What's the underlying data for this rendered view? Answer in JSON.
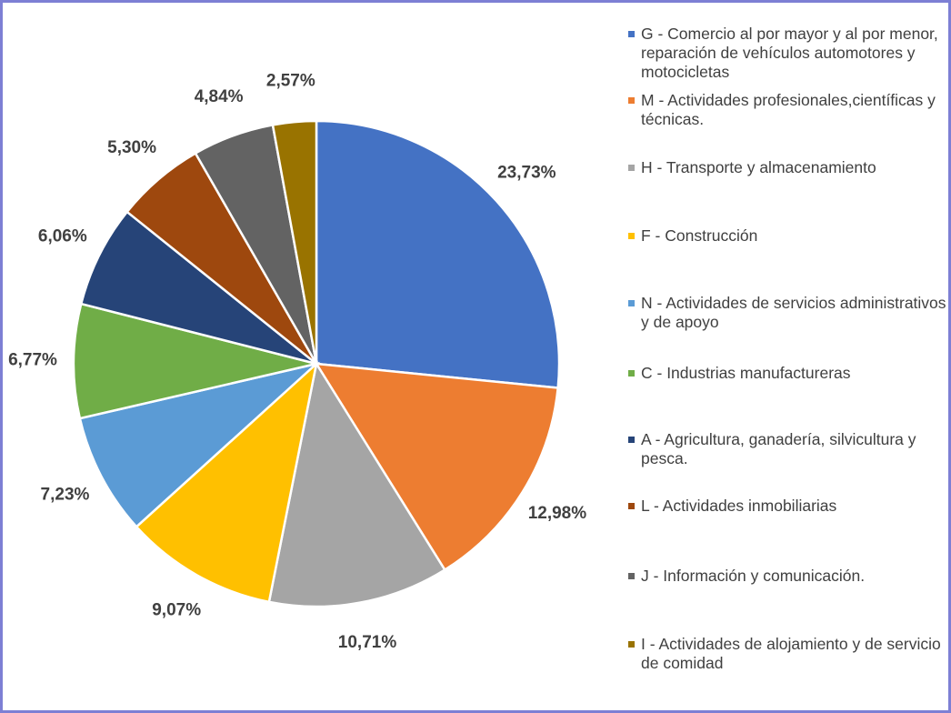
{
  "chart_data": {
    "type": "pie",
    "categories": [
      "G - Comercio al por mayor y al por menor, reparación de vehículos automotores y motocicletas",
      "M - Actividades profesionales,científicas y técnicas.",
      "H - Transporte y almacenamiento",
      "F - Construcción",
      "N - Actividades de servicios administrativos y de apoyo",
      "C - Industrias manufactureras",
      "A - Agricultura, ganadería, silvicultura y pesca.",
      "L - Actividades inmobiliarias",
      "J - Información y comunicación.",
      "I - Actividades de alojamiento y de servicio de comidad"
    ],
    "values": [
      23.73,
      12.98,
      10.71,
      9.07,
      7.23,
      6.77,
      6.06,
      5.3,
      4.84,
      2.57
    ],
    "value_labels": [
      "23,73%",
      "12,98%",
      "10,71%",
      "9,07%",
      "7,23%",
      "6,77%",
      "6,06%",
      "5,30%",
      "4,84%",
      "2,57%"
    ],
    "colors": [
      "#4472c4",
      "#ed7d31",
      "#a5a5a5",
      "#ffc000",
      "#5b9bd5",
      "#70ad47",
      "#264478",
      "#9e480e",
      "#636363",
      "#997300"
    ],
    "legend": "right"
  }
}
